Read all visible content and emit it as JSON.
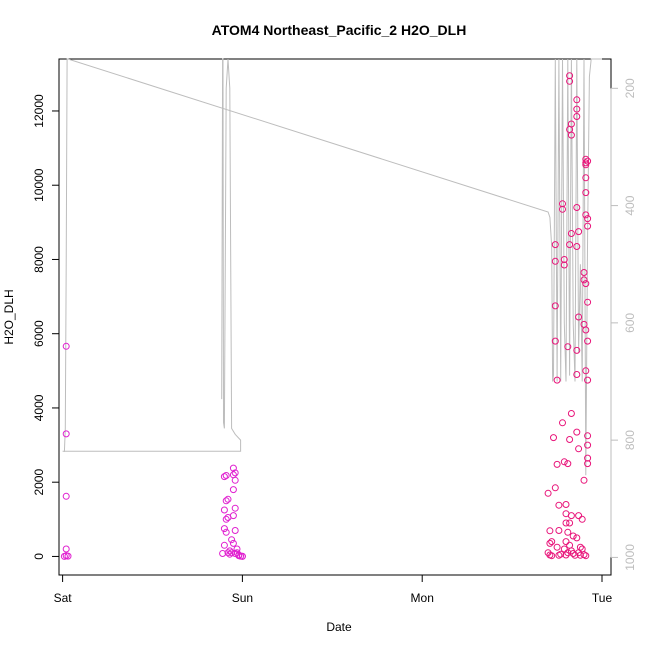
{
  "chart_data": {
    "type": "scatter",
    "title": "ATOM4 Northeast_Pacific_2 H2O_DLH",
    "xlabel": "Date",
    "ylabel": "H2O_DLH",
    "x_unit": "days_from_sat",
    "xlim": [
      -0.02,
      3.05
    ],
    "ylim": [
      -500,
      13400
    ],
    "x_ticks": [
      {
        "value": 0,
        "label": "Sat"
      },
      {
        "value": 1,
        "label": "Sun"
      },
      {
        "value": 2,
        "label": "Mon"
      },
      {
        "value": 3,
        "label": "Tue"
      }
    ],
    "y_ticks": [
      {
        "value": 0,
        "label": "0"
      },
      {
        "value": 2000,
        "label": "2000"
      },
      {
        "value": 4000,
        "label": "4000"
      },
      {
        "value": 6000,
        "label": "6000"
      },
      {
        "value": 8000,
        "label": "8000"
      },
      {
        "value": 10000,
        "label": "10000"
      },
      {
        "value": 12000,
        "label": "12000"
      }
    ],
    "y2_label": "",
    "y2lim": [
      1030,
      150
    ],
    "y2_ticks": [
      {
        "value": 200,
        "label": "200"
      },
      {
        "value": 400,
        "label": "400"
      },
      {
        "value": 600,
        "label": "600"
      },
      {
        "value": 800,
        "label": "800"
      },
      {
        "value": 1000,
        "label": "1000"
      }
    ],
    "colors": {
      "points": "#e8157a",
      "points_alt": "#e020d0",
      "pressure_line": "#bdbdbd"
    },
    "series": [
      {
        "kind": "points",
        "points": [
          [
            0.02,
            5660
          ],
          [
            0.02,
            3300
          ],
          [
            0.02,
            1620
          ],
          [
            0.02,
            200
          ],
          [
            0.02,
            20
          ],
          [
            0.01,
            0
          ],
          [
            0.03,
            10
          ],
          [
            0.9,
            2150
          ],
          [
            0.91,
            2180
          ],
          [
            0.92,
            1540
          ],
          [
            0.91,
            1500
          ],
          [
            0.9,
            1250
          ],
          [
            0.92,
            1050
          ],
          [
            0.91,
            1000
          ],
          [
            0.9,
            750
          ],
          [
            0.91,
            650
          ],
          [
            0.9,
            300
          ],
          [
            0.92,
            100
          ],
          [
            0.89,
            80
          ],
          [
            0.93,
            60
          ],
          [
            0.95,
            2380
          ],
          [
            0.96,
            2250
          ],
          [
            0.95,
            2200
          ],
          [
            0.96,
            2050
          ],
          [
            0.95,
            1800
          ],
          [
            0.96,
            1300
          ],
          [
            0.95,
            1100
          ],
          [
            0.96,
            700
          ],
          [
            0.94,
            450
          ],
          [
            0.95,
            350
          ],
          [
            0.93,
            150
          ],
          [
            0.94,
            100
          ],
          [
            0.96,
            80
          ],
          [
            0.97,
            200
          ],
          [
            0.97,
            100
          ],
          [
            0.98,
            40
          ],
          [
            0.99,
            10
          ],
          [
            1.0,
            0
          ],
          [
            1.0,
            5
          ],
          [
            0.98,
            20
          ],
          [
            2.7,
            1700
          ],
          [
            2.71,
            690
          ],
          [
            2.72,
            400
          ],
          [
            2.71,
            350
          ],
          [
            2.7,
            100
          ],
          [
            2.71,
            40
          ],
          [
            2.72,
            20
          ],
          [
            2.73,
            3200
          ],
          [
            2.74,
            1850
          ],
          [
            2.74,
            8400
          ],
          [
            2.74,
            7950
          ],
          [
            2.74,
            5800
          ],
          [
            2.74,
            6750
          ],
          [
            2.75,
            4750
          ],
          [
            2.75,
            2480
          ],
          [
            2.76,
            1380
          ],
          [
            2.76,
            700
          ],
          [
            2.75,
            250
          ],
          [
            2.77,
            60
          ],
          [
            2.76,
            30
          ],
          [
            2.78,
            9500
          ],
          [
            2.78,
            9350
          ],
          [
            2.79,
            8000
          ],
          [
            2.79,
            7850
          ],
          [
            2.78,
            3600
          ],
          [
            2.79,
            2550
          ],
          [
            2.8,
            1400
          ],
          [
            2.8,
            1150
          ],
          [
            2.8,
            900
          ],
          [
            2.81,
            650
          ],
          [
            2.8,
            400
          ],
          [
            2.79,
            200
          ],
          [
            2.81,
            100
          ],
          [
            2.8,
            40
          ],
          [
            2.82,
            12950
          ],
          [
            2.82,
            12800
          ],
          [
            2.83,
            11650
          ],
          [
            2.82,
            11500
          ],
          [
            2.83,
            11350
          ],
          [
            2.82,
            8400
          ],
          [
            2.83,
            8700
          ],
          [
            2.81,
            5650
          ],
          [
            2.82,
            3150
          ],
          [
            2.83,
            3850
          ],
          [
            2.81,
            2500
          ],
          [
            2.83,
            1100
          ],
          [
            2.82,
            900
          ],
          [
            2.84,
            550
          ],
          [
            2.82,
            300
          ],
          [
            2.83,
            150
          ],
          [
            2.84,
            80
          ],
          [
            2.85,
            30
          ],
          [
            2.86,
            12300
          ],
          [
            2.86,
            11850
          ],
          [
            2.86,
            12050
          ],
          [
            2.86,
            9400
          ],
          [
            2.87,
            8750
          ],
          [
            2.86,
            8350
          ],
          [
            2.87,
            6450
          ],
          [
            2.86,
            5550
          ],
          [
            2.86,
            4900
          ],
          [
            2.86,
            3350
          ],
          [
            2.87,
            2900
          ],
          [
            2.87,
            1100
          ],
          [
            2.86,
            500
          ],
          [
            2.88,
            250
          ],
          [
            2.87,
            100
          ],
          [
            2.88,
            30
          ],
          [
            2.91,
            10700
          ],
          [
            2.91,
            10600
          ],
          [
            2.92,
            10650
          ],
          [
            2.91,
            10550
          ],
          [
            2.91,
            10200
          ],
          [
            2.91,
            9800
          ],
          [
            2.91,
            9200
          ],
          [
            2.92,
            9100
          ],
          [
            2.92,
            8900
          ],
          [
            2.9,
            7650
          ],
          [
            2.9,
            7450
          ],
          [
            2.91,
            7350
          ],
          [
            2.92,
            6850
          ],
          [
            2.9,
            6250
          ],
          [
            2.91,
            6100
          ],
          [
            2.92,
            5800
          ],
          [
            2.91,
            5000
          ],
          [
            2.92,
            4750
          ],
          [
            2.92,
            3250
          ],
          [
            2.92,
            3000
          ],
          [
            2.92,
            2650
          ],
          [
            2.92,
            2500
          ],
          [
            2.9,
            2050
          ],
          [
            2.89,
            1000
          ],
          [
            2.89,
            200
          ],
          [
            2.9,
            50
          ],
          [
            2.91,
            20
          ]
        ]
      },
      {
        "kind": "pressure_line",
        "points": [
          [
            0.01,
            820
          ],
          [
            0.015,
            780
          ],
          [
            0.02,
            500
          ],
          [
            0.025,
            150
          ],
          [
            0.03,
            150
          ],
          [
            2.7,
            411
          ],
          [
            2.71,
            420
          ],
          [
            2.72,
            470
          ],
          [
            2.725,
            700
          ],
          [
            2.73,
            690
          ],
          [
            2.74,
            80
          ],
          [
            2.75,
            700
          ],
          [
            2.76,
            80
          ],
          [
            2.77,
            700
          ],
          [
            2.78,
            100
          ],
          [
            2.79,
            600
          ],
          [
            2.8,
            700
          ],
          [
            2.81,
            80
          ],
          [
            2.82,
            690
          ],
          [
            2.83,
            100
          ],
          [
            2.84,
            600
          ],
          [
            2.85,
            700
          ],
          [
            2.86,
            90
          ],
          [
            2.87,
            650
          ],
          [
            2.88,
            500
          ],
          [
            2.89,
            700
          ],
          [
            2.9,
            120
          ],
          [
            2.91,
            860
          ],
          [
            2.92,
            450
          ],
          [
            2.93,
            180
          ],
          [
            2.94,
            130
          ],
          [
            2.96,
            125
          ],
          [
            3.0,
            120
          ]
        ],
        "extra_segments": [
          [
            [
              0.0,
              819
            ],
            [
              0.99,
              819
            ],
            [
              0.99,
              800
            ],
            [
              0.96,
              790
            ],
            [
              0.94,
              780
            ],
            [
              0.93,
              200
            ],
            [
              0.92,
              150
            ],
            [
              0.91,
              200
            ],
            [
              0.9,
              780
            ],
            [
              0.895,
              770
            ],
            [
              0.892,
              150
            ],
            [
              0.89,
              150
            ],
            [
              0.885,
              730
            ]
          ]
        ]
      }
    ]
  }
}
